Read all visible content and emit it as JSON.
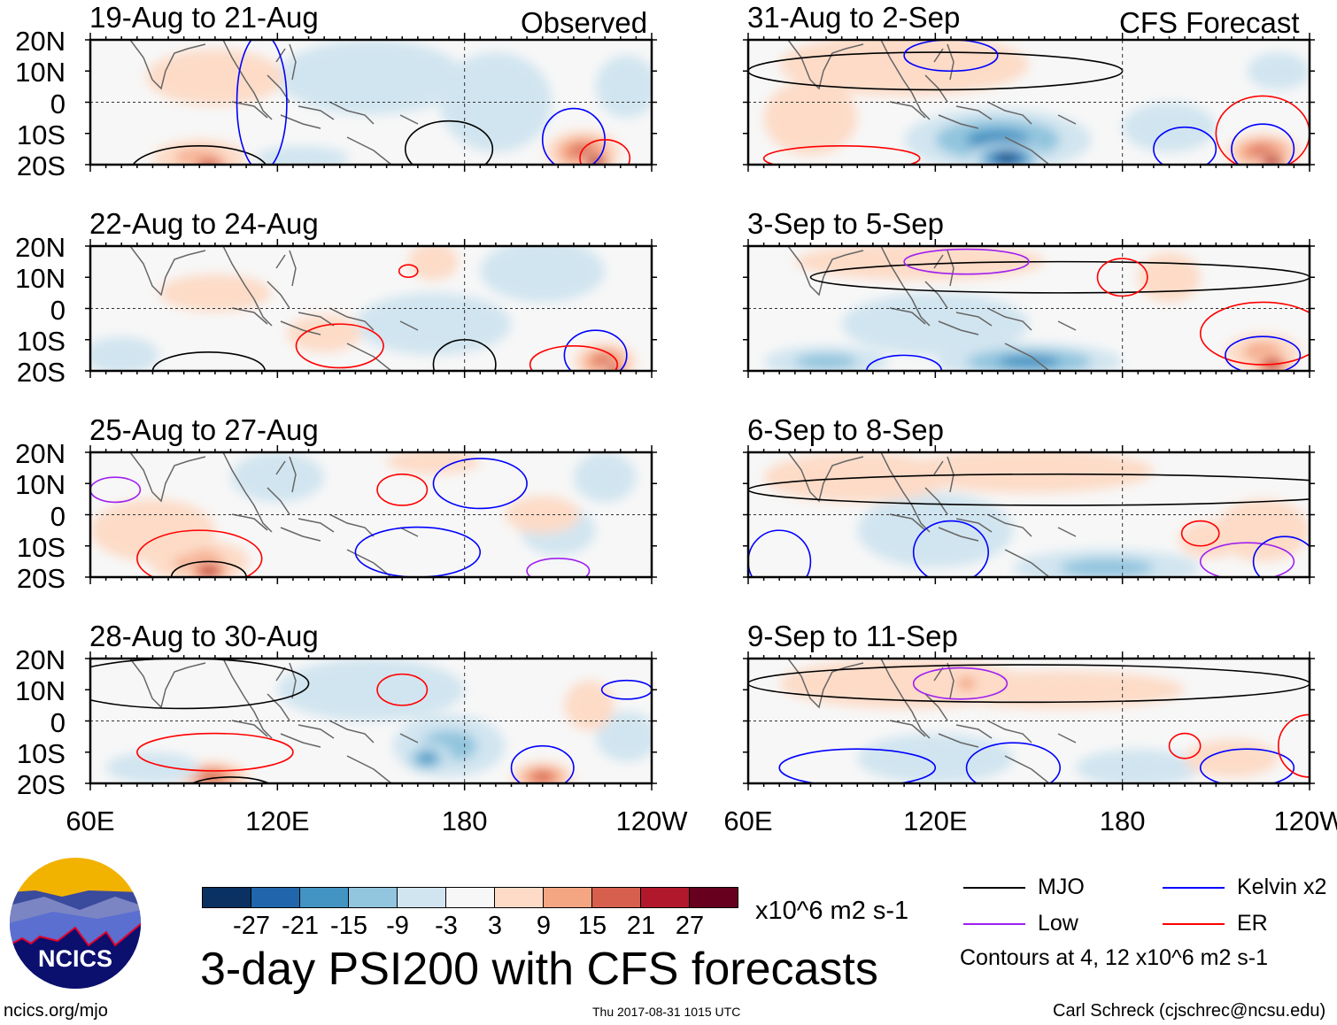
{
  "corner_labels": {
    "observed": "Observed",
    "forecast": "CFS Forecast"
  },
  "lat_labels": [
    "20N",
    "10N",
    "0",
    "10S",
    "20S"
  ],
  "lon_labels": [
    "60E",
    "120E",
    "180",
    "120W"
  ],
  "panels": [
    {
      "title": "19-Aug to 21-Aug",
      "col": 0,
      "row": 0,
      "anoms": [
        [
          150,
          8,
          -6,
          30,
          12
        ],
        [
          190,
          0,
          -4,
          18,
          16
        ],
        [
          95,
          -18,
          14,
          15,
          6
        ],
        [
          98,
          -20,
          22,
          8,
          3
        ],
        [
          218,
          -16,
          20,
          12,
          7
        ],
        [
          222,
          -19,
          28,
          6,
          3
        ],
        [
          100,
          8,
          4,
          22,
          9
        ],
        [
          232,
          5,
          -5,
          10,
          10
        ],
        [
          128,
          -18,
          -5,
          15,
          4
        ]
      ],
      "contours": [
        [
          "mjo",
          95,
          -22,
          22,
          8
        ],
        [
          "mjo",
          175,
          -15,
          14,
          9
        ],
        [
          "kelvin",
          215,
          -12,
          10,
          10
        ],
        [
          "er",
          225,
          -18,
          8,
          6
        ],
        [
          "kelvin",
          115,
          0,
          8,
          22
        ]
      ]
    },
    {
      "title": "22-Aug to 24-Aug",
      "col": 0,
      "row": 1,
      "anoms": [
        [
          205,
          12,
          -5,
          20,
          10
        ],
        [
          170,
          -5,
          -5,
          25,
          10
        ],
        [
          70,
          -15,
          -6,
          12,
          6
        ],
        [
          225,
          -17,
          18,
          10,
          6
        ],
        [
          228,
          -20,
          26,
          5,
          3
        ],
        [
          135,
          -8,
          5,
          12,
          6
        ],
        [
          170,
          15,
          4,
          8,
          6
        ],
        [
          100,
          5,
          4,
          18,
          6
        ]
      ],
      "contours": [
        [
          "mjo",
          98,
          -20,
          18,
          6
        ],
        [
          "mjo",
          180,
          -18,
          10,
          8
        ],
        [
          "kelvin",
          222,
          -15,
          10,
          8
        ],
        [
          "er",
          215,
          -18,
          14,
          6
        ],
        [
          "er",
          162,
          12,
          3,
          2
        ],
        [
          "er",
          140,
          -12,
          14,
          7
        ]
      ]
    },
    {
      "title": "25-Aug to 27-Aug",
      "col": 0,
      "row": 2,
      "anoms": [
        [
          95,
          -15,
          14,
          16,
          7
        ],
        [
          98,
          -18,
          22,
          8,
          4
        ],
        [
          170,
          17,
          5,
          15,
          4
        ],
        [
          120,
          12,
          -4,
          15,
          8
        ],
        [
          210,
          -5,
          -4,
          12,
          8
        ],
        [
          225,
          12,
          -3,
          10,
          8
        ],
        [
          80,
          -5,
          5,
          20,
          10
        ],
        [
          205,
          0,
          4,
          12,
          6
        ]
      ],
      "contours": [
        [
          "er",
          95,
          -14,
          20,
          9
        ],
        [
          "mjo",
          98,
          -20,
          12,
          5
        ],
        [
          "er",
          160,
          8,
          8,
          5
        ],
        [
          "kelvin",
          165,
          -12,
          20,
          8
        ],
        [
          "kelvin",
          185,
          10,
          15,
          8
        ],
        [
          "low",
          210,
          -18,
          10,
          4
        ],
        [
          "low",
          68,
          8,
          8,
          4
        ]
      ]
    },
    {
      "title": "28-Aug to 30-Aug",
      "col": 0,
      "row": 3,
      "anoms": [
        [
          175,
          -8,
          -12,
          18,
          10
        ],
        [
          168,
          -12,
          -18,
          8,
          5
        ],
        [
          150,
          10,
          -5,
          30,
          10
        ],
        [
          99,
          -18,
          18,
          12,
          5
        ],
        [
          205,
          -18,
          20,
          10,
          5
        ],
        [
          80,
          -15,
          -5,
          15,
          5
        ],
        [
          232,
          -5,
          -5,
          10,
          8
        ],
        [
          220,
          5,
          4,
          8,
          8
        ]
      ],
      "contours": [
        [
          "mjo",
          90,
          12,
          40,
          8
        ],
        [
          "er",
          160,
          10,
          8,
          5
        ],
        [
          "er",
          100,
          -10,
          25,
          6
        ],
        [
          "kelvin",
          205,
          -15,
          10,
          7
        ],
        [
          "kelvin",
          232,
          10,
          8,
          3
        ],
        [
          "mjo",
          105,
          -22,
          14,
          4
        ]
      ]
    },
    {
      "title": "31-Aug to 2-Sep",
      "col": 1,
      "row": 0,
      "anoms": [
        [
          140,
          -12,
          -15,
          30,
          10
        ],
        [
          143,
          -18,
          -27,
          12,
          5
        ],
        [
          110,
          12,
          6,
          40,
          10
        ],
        [
          225,
          -16,
          20,
          12,
          6
        ],
        [
          228,
          -19,
          27,
          6,
          3
        ],
        [
          195,
          -8,
          -5,
          15,
          8
        ],
        [
          230,
          10,
          -4,
          10,
          6
        ],
        [
          80,
          -5,
          4,
          15,
          12
        ]
      ],
      "contours": [
        [
          "mjo",
          120,
          10,
          60,
          6
        ],
        [
          "kelvin",
          125,
          15,
          15,
          5
        ],
        [
          "kelvin",
          225,
          -15,
          10,
          8
        ],
        [
          "er",
          225,
          -10,
          15,
          12
        ],
        [
          "er",
          90,
          -18,
          25,
          4
        ],
        [
          "kelvin",
          200,
          -15,
          10,
          7
        ]
      ]
    },
    {
      "title": "3-Sep to 5-Sep",
      "col": 1,
      "row": 1,
      "anoms": [
        [
          150,
          -17,
          -15,
          30,
          6
        ],
        [
          85,
          -17,
          -10,
          20,
          5
        ],
        [
          120,
          -5,
          -4,
          30,
          10
        ],
        [
          115,
          15,
          6,
          40,
          6
        ],
        [
          225,
          -14,
          14,
          12,
          6
        ],
        [
          228,
          -18,
          22,
          7,
          4
        ],
        [
          195,
          10,
          4,
          10,
          8
        ]
      ],
      "contours": [
        [
          "mjo",
          160,
          10,
          80,
          5
        ],
        [
          "er",
          180,
          10,
          8,
          6
        ],
        [
          "er",
          225,
          -8,
          20,
          10
        ],
        [
          "kelvin",
          225,
          -15,
          12,
          6
        ],
        [
          "kelvin",
          110,
          -20,
          12,
          5
        ],
        [
          "low",
          130,
          15,
          20,
          4
        ]
      ]
    },
    {
      "title": "6-Sep to 8-Sep",
      "col": 1,
      "row": 2,
      "anoms": [
        [
          150,
          14,
          8,
          40,
          7
        ],
        [
          175,
          -17,
          -14,
          30,
          6
        ],
        [
          120,
          -5,
          -4,
          25,
          12
        ],
        [
          225,
          -5,
          6,
          15,
          10
        ],
        [
          95,
          12,
          5,
          30,
          8
        ],
        [
          208,
          -8,
          5,
          10,
          6
        ]
      ],
      "contours": [
        [
          "mjo",
          160,
          8,
          100,
          5
        ],
        [
          "kelvin",
          70,
          -15,
          10,
          10
        ],
        [
          "kelvin",
          125,
          -12,
          12,
          10
        ],
        [
          "low",
          220,
          -15,
          15,
          6
        ],
        [
          "er",
          205,
          -6,
          6,
          4
        ],
        [
          "kelvin",
          232,
          -15,
          10,
          8
        ]
      ]
    },
    {
      "title": "9-Sep to 11-Sep",
      "col": 1,
      "row": 3,
      "anoms": [
        [
          110,
          12,
          5,
          40,
          8
        ],
        [
          160,
          10,
          4,
          40,
          6
        ],
        [
          120,
          -12,
          -4,
          25,
          8
        ],
        [
          185,
          -15,
          -4,
          20,
          6
        ],
        [
          215,
          -12,
          4,
          15,
          6
        ],
        [
          130,
          12,
          10,
          6,
          4
        ]
      ],
      "contours": [
        [
          "mjo",
          150,
          12,
          90,
          6
        ],
        [
          "kelvin",
          95,
          -15,
          25,
          6
        ],
        [
          "kelvin",
          145,
          -15,
          15,
          8
        ],
        [
          "kelvin",
          220,
          -15,
          15,
          6
        ],
        [
          "er",
          240,
          -8,
          10,
          10
        ],
        [
          "er",
          200,
          -8,
          5,
          4
        ],
        [
          "low",
          128,
          12,
          15,
          5
        ]
      ]
    }
  ],
  "colorbar": {
    "colors": [
      "#0a3161",
      "#2166ac",
      "#4393c3",
      "#92c5de",
      "#d1e5f0",
      "#f7f7f7",
      "#fddbc7",
      "#f4a582",
      "#d6604d",
      "#b2182b",
      "#67001f"
    ],
    "labels": [
      "-27",
      "-21",
      "-15",
      "-9",
      "-3",
      "3",
      "9",
      "15",
      "21",
      "27"
    ],
    "units": "x10^6 m2 s-1"
  },
  "title": "3-day PSI200 with CFS forecasts",
  "timestamp": "Thu 2017-08-31 1015 UTC",
  "logo": {
    "text": "NCICS",
    "url_text": "ncics.org/mjo"
  },
  "legend": {
    "items": [
      {
        "label": "MJO",
        "color": "#000000"
      },
      {
        "label": "Kelvin x2",
        "color": "#0000ff"
      },
      {
        "label": "Low",
        "color": "#a020f0"
      },
      {
        "label": "ER",
        "color": "#ff0000"
      }
    ],
    "note": "Contours at 4, 12 x10^6 m2 s-1"
  },
  "credit": "Carl Schreck (cjschrec@ncsu.edu)"
}
